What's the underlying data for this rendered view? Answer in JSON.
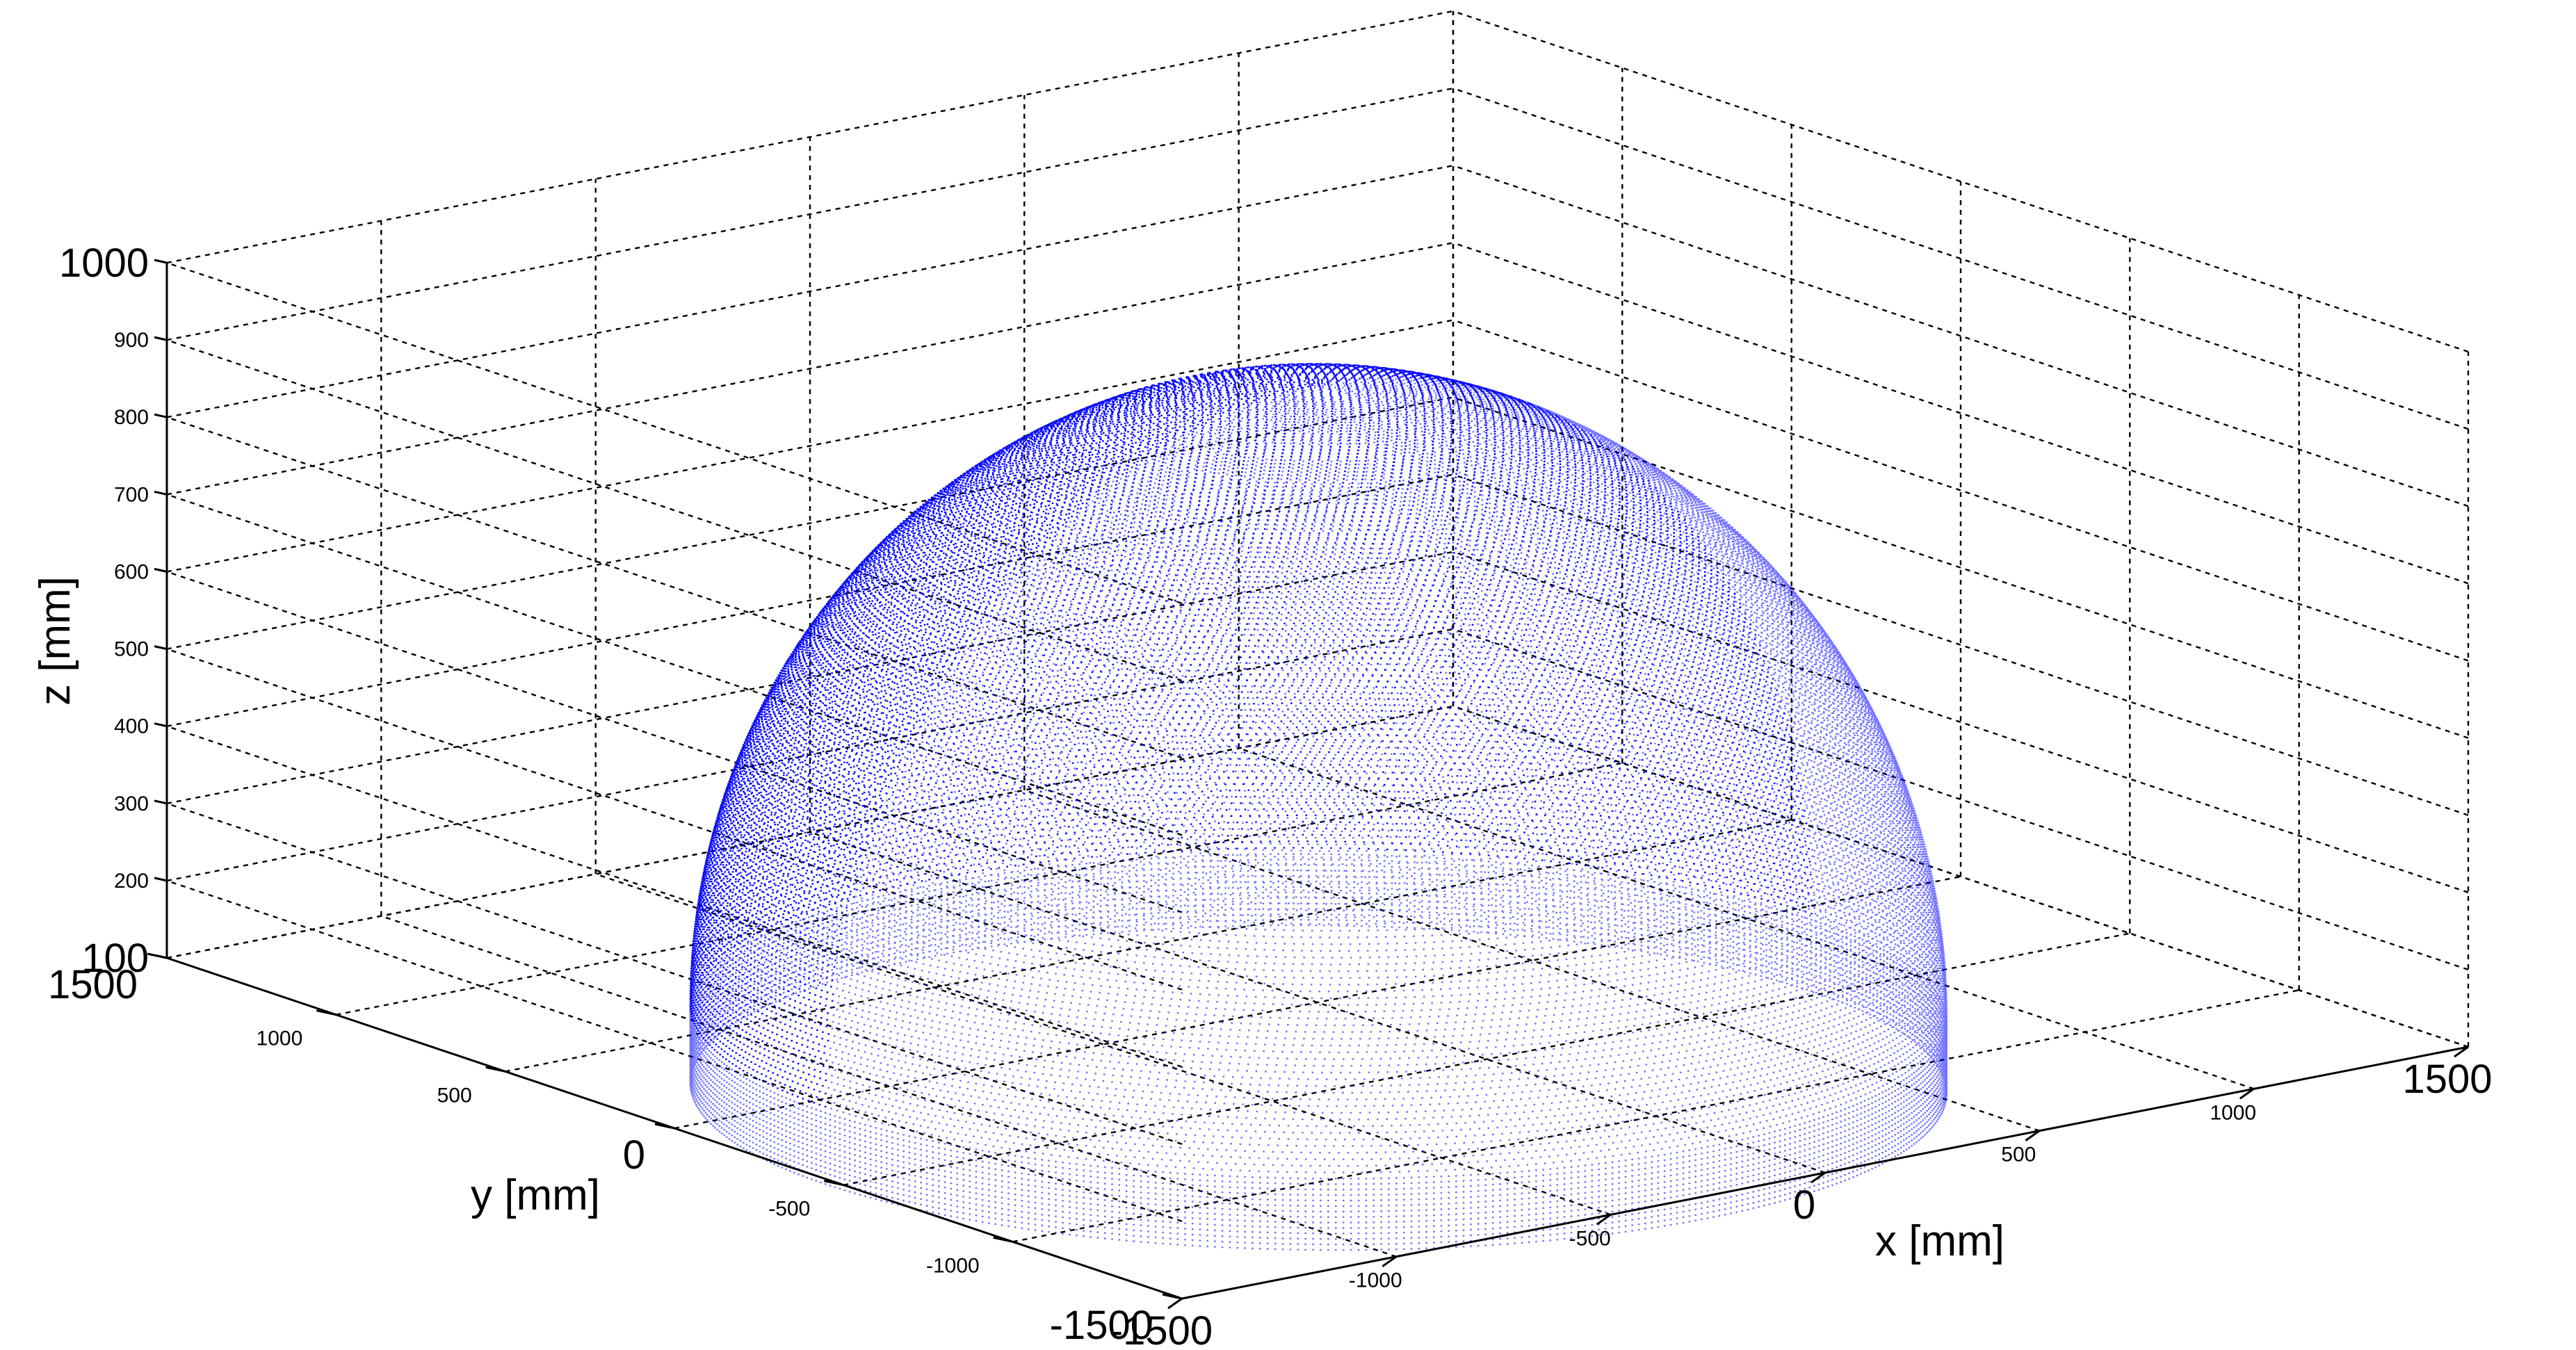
{
  "chart_data": {
    "type": "scatter",
    "subtype": "3d-point-cloud",
    "title": "",
    "xlabel": "x [mm]",
    "ylabel": "y [mm]",
    "zlabel": "z [mm]",
    "xlim": [
      -1500,
      1500
    ],
    "ylim": [
      -1500,
      1500
    ],
    "zlim": [
      100,
      1000
    ],
    "grid": true,
    "legend": "none",
    "marker_color": "#0000ff",
    "x_ticks": [
      {
        "value": -1500,
        "label": "-1500"
      },
      {
        "value": -1000,
        "label": "-1000"
      },
      {
        "value": -500,
        "label": "-500"
      },
      {
        "value": 0,
        "label": "0"
      },
      {
        "value": 500,
        "label": "500"
      },
      {
        "value": 1000,
        "label": "1000"
      },
      {
        "value": 1500,
        "label": "1500"
      }
    ],
    "y_ticks": [
      {
        "value": -1500,
        "label": "-1500"
      },
      {
        "value": -1000,
        "label": "-1000"
      },
      {
        "value": -500,
        "label": "-500"
      },
      {
        "value": 0,
        "label": "0"
      },
      {
        "value": 500,
        "label": "500"
      },
      {
        "value": 1000,
        "label": "1000"
      },
      {
        "value": 1500,
        "label": "1500"
      }
    ],
    "z_ticks": [
      {
        "value": 100,
        "label": "100"
      },
      {
        "value": 200,
        "label": "200"
      },
      {
        "value": 300,
        "label": "300"
      },
      {
        "value": 400,
        "label": "400"
      },
      {
        "value": 500,
        "label": "500"
      },
      {
        "value": 600,
        "label": "600"
      },
      {
        "value": 700,
        "label": "700"
      },
      {
        "value": 800,
        "label": "800"
      },
      {
        "value": 900,
        "label": "900"
      },
      {
        "value": 1000,
        "label": "1000"
      }
    ],
    "series": [
      {
        "shape": "hemispherical dome point cloud",
        "center": [
          0,
          0
        ],
        "radius": 1150,
        "z_base": 90,
        "z_apex": 900
      }
    ]
  }
}
